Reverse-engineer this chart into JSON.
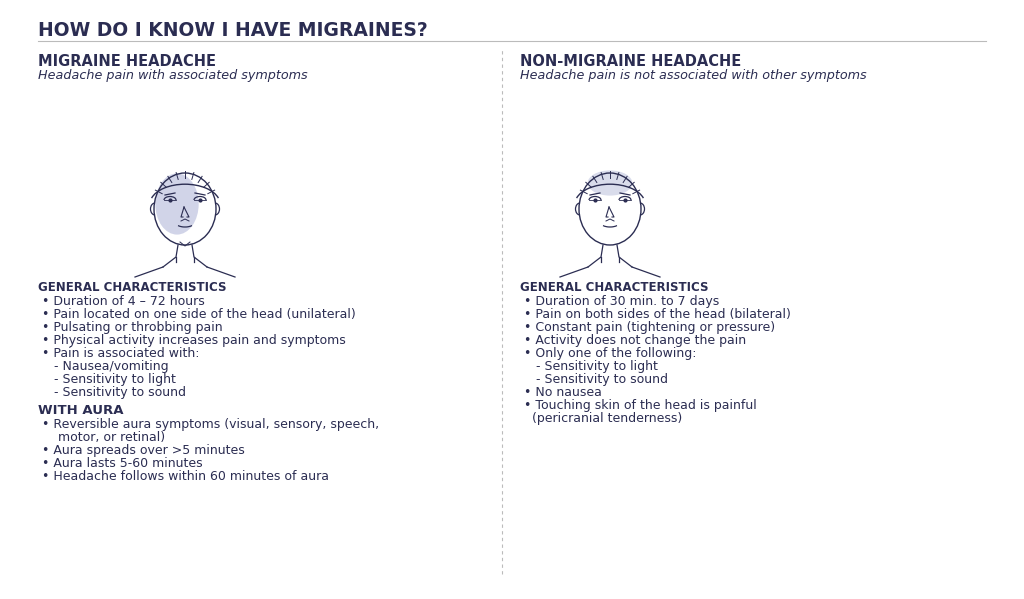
{
  "title": "HOW DO I KNOW I HAVE MIGRAINES?",
  "title_color": "#2b2d52",
  "title_fontsize": 13.5,
  "background_color": "#ffffff",
  "divider_color": "#bbbbbb",
  "text_color": "#2b2d52",
  "body_color": "#2b2d52",
  "left_heading": "MIGRAINE HEADACHE",
  "left_subheading": "Headache pain with associated symptoms",
  "left_section1_heading": "GENERAL CHARACTERISTICS",
  "left_section1_items": [
    "• Duration of 4 – 72 hours",
    "• Pain located on one side of the head (unilateral)",
    "• Pulsating or throbbing pain",
    "• Physical activity increases pain and symptoms",
    "• Pain is associated with:",
    "   - Nausea/vomiting",
    "   - Sensitivity to light",
    "   - Sensitivity to sound"
  ],
  "left_section2_heading": "WITH AURA",
  "left_section2_items": [
    "• Reversible aura symptoms (visual, sensory, speech,\n    motor, or retinal)",
    "• Aura spreads over >5 minutes",
    "• Aura lasts 5-60 minutes",
    "• Headache follows within 60 minutes of aura"
  ],
  "right_heading": "NON-MIGRAINE HEADACHE",
  "right_subheading": "Headache pain is not associated with other symptoms",
  "right_section1_heading": "GENERAL CHARACTERISTICS",
  "right_section1_items": [
    "• Duration of 30 min. to 7 days",
    "• Pain on both sides of the head (bilateral)",
    "• Constant pain (tightening or pressure)",
    "• Activity does not change the pain",
    "• Only one of the following:",
    "   - Sensitivity to light",
    "   - Sensitivity to sound",
    "• No nausea",
    "• Touching skin of the head is painful\n  (pericranial tenderness)"
  ],
  "face_edge_color": "#2b2d52",
  "face_shade_migraine": "#8890c4",
  "face_shade_nonmigraine": "#9ba3cc",
  "face_shade_alpha": 0.38
}
